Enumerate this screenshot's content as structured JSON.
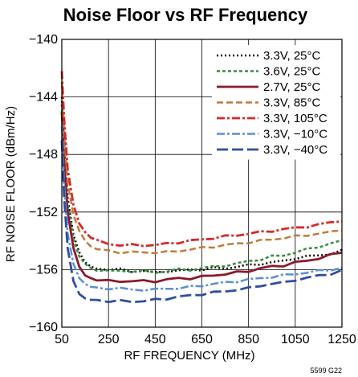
{
  "chart_data": {
    "type": "line",
    "title": "Noise Floor vs RF Frequency",
    "xlabel": "RF FREQUENCY (MHz)",
    "ylabel": "RF NOISE FLOOR (dBm/Hz)",
    "xlim": [
      50,
      1250
    ],
    "ylim": [
      -160,
      -140
    ],
    "xticks": [
      50,
      250,
      450,
      650,
      850,
      1050,
      1250
    ],
    "yticks": [
      -140,
      -144,
      -148,
      -152,
      -156,
      -160
    ],
    "xtick_labels": [
      "50",
      "250",
      "450",
      "650",
      "850",
      "1050",
      "1250"
    ],
    "ytick_labels": [
      "−140",
      "−144",
      "−148",
      "−152",
      "−156",
      "−160"
    ],
    "grid": true,
    "legend_position": "top-right",
    "figure_code": "5599 G22",
    "x": [
      50,
      60,
      75,
      100,
      125,
      150,
      175,
      200,
      250,
      300,
      350,
      400,
      450,
      500,
      550,
      600,
      650,
      700,
      750,
      800,
      850,
      900,
      950,
      1000,
      1050,
      1100,
      1150,
      1200,
      1250
    ],
    "series": [
      {
        "name": "3.3V, 25°C",
        "color": "#000000",
        "dash": "2,3",
        "width": 2.5,
        "values": [
          -144.0,
          -147.5,
          -151.0,
          -153.6,
          -154.8,
          -155.5,
          -155.8,
          -155.9,
          -156.0,
          -156.0,
          -156.1,
          -156.1,
          -156.2,
          -156.1,
          -156.1,
          -156.0,
          -156.0,
          -155.9,
          -155.9,
          -155.8,
          -155.7,
          -155.6,
          -155.5,
          -155.4,
          -155.2,
          -155.1,
          -155.0,
          -154.9,
          -154.7
        ]
      },
      {
        "name": "3.6V, 25°C",
        "color": "#3c8a3c",
        "dash": "4,3",
        "width": 2.5,
        "values": [
          -144.5,
          -148.0,
          -151.4,
          -153.9,
          -155.1,
          -155.6,
          -155.9,
          -156.0,
          -156.1,
          -156.1,
          -156.1,
          -156.1,
          -156.2,
          -156.1,
          -156.0,
          -156.0,
          -155.9,
          -155.8,
          -155.7,
          -155.6,
          -155.4,
          -155.3,
          -155.1,
          -155.0,
          -154.8,
          -154.6,
          -154.4,
          -154.2,
          -154.0
        ]
      },
      {
        "name": "2.7V, 25°C",
        "color": "#8b1a2b",
        "dash": "",
        "width": 2.8,
        "values": [
          -145.0,
          -148.5,
          -152.0,
          -154.5,
          -155.8,
          -156.4,
          -156.6,
          -156.7,
          -156.8,
          -156.8,
          -156.8,
          -156.8,
          -156.8,
          -156.7,
          -156.6,
          -156.6,
          -156.5,
          -156.4,
          -156.3,
          -156.2,
          -156.1,
          -155.9,
          -155.8,
          -155.7,
          -155.5,
          -155.4,
          -155.2,
          -155.0,
          -154.8
        ]
      },
      {
        "name": "3.3V, 85°C",
        "color": "#c07a3a",
        "dash": "8,4",
        "width": 2.5,
        "values": [
          -143.0,
          -146.5,
          -150.0,
          -152.2,
          -153.3,
          -154.0,
          -154.4,
          -154.6,
          -154.7,
          -154.8,
          -154.8,
          -154.8,
          -154.8,
          -154.8,
          -154.7,
          -154.6,
          -154.5,
          -154.4,
          -154.3,
          -154.2,
          -154.1,
          -154.0,
          -153.9,
          -153.8,
          -153.7,
          -153.6,
          -153.5,
          -153.4,
          -153.2
        ]
      },
      {
        "name": "3.3V, 105°C",
        "color": "#d42a2a",
        "dash": "10,3,3,3",
        "width": 2.8,
        "values": [
          -142.2,
          -145.5,
          -149.0,
          -151.5,
          -152.8,
          -153.4,
          -153.8,
          -154.0,
          -154.2,
          -154.3,
          -154.3,
          -154.3,
          -154.3,
          -154.2,
          -154.1,
          -154.0,
          -153.9,
          -153.8,
          -153.7,
          -153.6,
          -153.5,
          -153.4,
          -153.3,
          -153.2,
          -153.1,
          -153.0,
          -152.9,
          -152.7,
          -152.6
        ]
      },
      {
        "name": "3.3V, −10°C",
        "color": "#5a8fd0",
        "dash": "10,3,3,3",
        "width": 2.5,
        "values": [
          -146.0,
          -150.0,
          -153.5,
          -155.6,
          -156.6,
          -157.0,
          -157.2,
          -157.3,
          -157.3,
          -157.3,
          -157.4,
          -157.4,
          -157.4,
          -157.3,
          -157.3,
          -157.2,
          -157.1,
          -157.0,
          -156.9,
          -156.8,
          -156.7,
          -156.6,
          -156.5,
          -156.4,
          -156.3,
          -156.2,
          -156.1,
          -156.0,
          -155.9
        ]
      },
      {
        "name": "3.3V, −40°C",
        "color": "#2e4ea0",
        "dash": "14,5",
        "width": 2.8,
        "values": [
          -147.0,
          -151.0,
          -154.5,
          -156.8,
          -157.7,
          -158.0,
          -158.1,
          -158.1,
          -158.2,
          -158.2,
          -158.2,
          -158.2,
          -158.1,
          -158.0,
          -157.9,
          -157.8,
          -157.7,
          -157.6,
          -157.5,
          -157.4,
          -157.3,
          -157.1,
          -157.0,
          -156.9,
          -156.7,
          -156.6,
          -156.4,
          -156.3,
          -156.1
        ]
      }
    ]
  }
}
